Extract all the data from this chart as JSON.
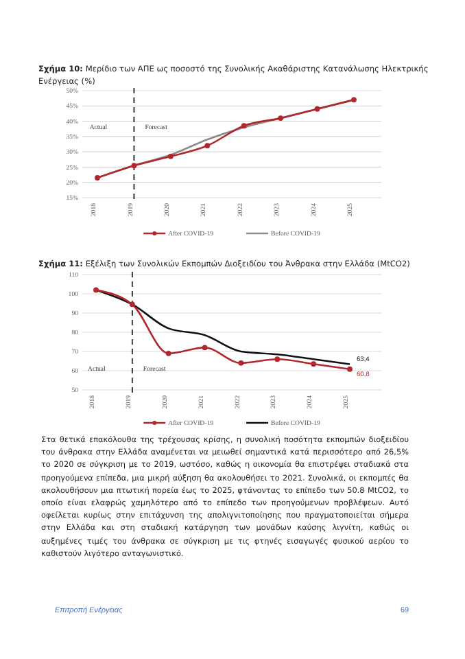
{
  "chart_data": [
    {
      "type": "line",
      "title": "Σχήμα 10: Μερίδιο των ΑΠΕ ως ποσοστό της Συνολικής Ακαθάριστης Κατανάλωσης Ηλεκτρικής Ενέργειας (%)",
      "categories": [
        "2018",
        "2019",
        "2020",
        "2021",
        "2022",
        "2023",
        "2024",
        "2025"
      ],
      "series": [
        {
          "name": "After COVID-19",
          "color": "#b0282d",
          "marker": "circle",
          "values": [
            21.5,
            25.5,
            28.5,
            32,
            38.5,
            41,
            44,
            47
          ]
        },
        {
          "name": "Before COVID-19",
          "color": "#8c8c8c",
          "marker": "none",
          "values": [
            21.5,
            25.5,
            29,
            34,
            38,
            41,
            44,
            47
          ]
        }
      ],
      "ylim": [
        15,
        50
      ],
      "yticks": [
        {
          "value": 15,
          "label": "15%"
        },
        {
          "value": 20,
          "label": "20%"
        },
        {
          "value": 25,
          "label": "25%"
        },
        {
          "value": 30,
          "label": "30%"
        },
        {
          "value": 35,
          "label": "35%"
        },
        {
          "value": 40,
          "label": "40%"
        },
        {
          "value": 45,
          "label": "45%"
        },
        {
          "value": 50,
          "label": "50%"
        }
      ],
      "grid": "y",
      "legend": "bottom",
      "ref_lines": [
        {
          "axis": "x",
          "value": "2019",
          "color": "#222222",
          "line_style": "dashed"
        }
      ],
      "annotations": [
        "Actual",
        "Forecast"
      ]
    },
    {
      "type": "line",
      "title": "Σχήμα 11: Εξέλιξη των Συνολικών Εκπομπών Διοξειδίου του Άνθρακα στην Ελλάδα (MtCO2)",
      "categories": [
        "2018",
        "2019",
        "2020",
        "2021",
        "2022",
        "2023",
        "2024",
        "2025"
      ],
      "series": [
        {
          "name": "After COVID-19",
          "color": "#b0282d",
          "marker": "circle",
          "values": [
            102,
            94.5,
            69,
            72,
            64,
            66,
            63.5,
            60.8
          ],
          "value_labels": [
            null,
            null,
            null,
            null,
            null,
            null,
            null,
            "60,8"
          ]
        },
        {
          "name": "Before COVID-19",
          "color": "#111111",
          "marker": "none",
          "values": [
            102,
            94.5,
            82,
            78.5,
            70,
            68.5,
            66,
            63.4
          ],
          "value_labels": [
            null,
            null,
            null,
            null,
            null,
            null,
            null,
            "63,4"
          ]
        }
      ],
      "ylim": [
        50,
        110
      ],
      "yticks": [
        50,
        60,
        70,
        80,
        90,
        100,
        110
      ],
      "grid": "y",
      "legend": "bottom",
      "ref_lines": [
        {
          "axis": "x",
          "value": "2019",
          "color": "#222222",
          "line_style": "dashed"
        }
      ],
      "annotations": [
        "Actual",
        "Forecast",
        "Στα θετικά επακόλουθα της τρέχουσας κρίσης, η συνολική ποσότητα εκπομπών διοξειδίου του άνθρακα στην Ελλάδα αναμένεται να μειωθεί σημαντικά κατά περισσότερο από 26,5% το 2020 σε σύγκριση με το 2019, ωστόσο, καθώς η οικονομία θα επιστρέψει σταδιακά στα προηγούμενα επίπεδα, μια μικρή αύξηση θα ακολουθήσει το 2021. Συνολικά, οι εκπομπές θα ακολουθήσουν μια πτωτική πορεία έως το 2025, φτάνοντας το επίπεδο των 50.8 MtCO2, το οποίο είναι ελαφρώς χαμηλότερο από το επίπεδο των προηγούμενων προβλέψεων. Αυτό οφείλεται κυρίως στην επιτάχυνση της απολιγνιτοποίησης που πραγματοποιείται σήμερα στην Ελλάδα και στη σταδιακή κατάργηση των μονάδων καύσης λιγνίτη, καθώς οι αυξημένες τιμές του άνθρακα σε σύγκριση με τις φτηνές εισαγωγές φυσικού αερίου το καθιστούν λιγότερο ανταγωνιστικό.",
        "Επιτροπή Ενέργειας",
        "69"
      ]
    }
  ]
}
